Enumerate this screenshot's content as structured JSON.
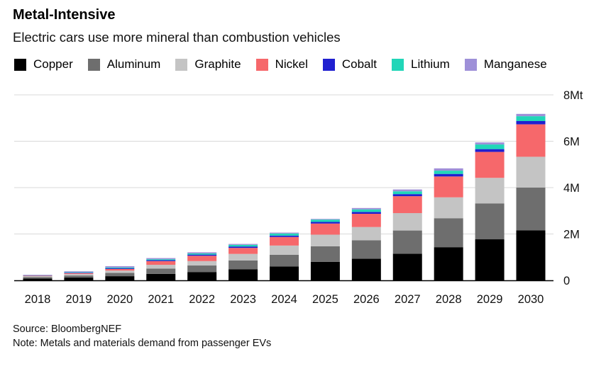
{
  "title": "Metal-Intensive",
  "subtitle": "Electric cars use more mineral than combustion vehicles",
  "source": "Source: BloombergNEF",
  "note": "Note: Metals and materials demand from passenger EVs",
  "chart_data": {
    "type": "bar",
    "stacked": true,
    "categories": [
      "2018",
      "2019",
      "2020",
      "2021",
      "2022",
      "2023",
      "2024",
      "2025",
      "2026",
      "2027",
      "2028",
      "2029",
      "2030"
    ],
    "series": [
      {
        "name": "Copper",
        "color": "#000000",
        "values": [
          0.08,
          0.12,
          0.18,
          0.28,
          0.36,
          0.48,
          0.6,
          0.8,
          0.93,
          1.15,
          1.43,
          1.77,
          2.16
        ]
      },
      {
        "name": "Aluminum",
        "color": "#6e6e6e",
        "values": [
          0.06,
          0.09,
          0.14,
          0.23,
          0.28,
          0.38,
          0.5,
          0.67,
          0.8,
          1.0,
          1.25,
          1.55,
          1.84
        ]
      },
      {
        "name": "Graphite",
        "color": "#c4c4c4",
        "values": [
          0.04,
          0.06,
          0.1,
          0.16,
          0.19,
          0.28,
          0.4,
          0.5,
          0.57,
          0.75,
          0.9,
          1.1,
          1.33
        ]
      },
      {
        "name": "Nickel",
        "color": "#f6686b",
        "values": [
          0.02,
          0.04,
          0.07,
          0.16,
          0.23,
          0.26,
          0.37,
          0.48,
          0.57,
          0.73,
          0.9,
          1.12,
          1.4
        ]
      },
      {
        "name": "Cobalt",
        "color": "#2020d0",
        "values": [
          0.01,
          0.02,
          0.03,
          0.04,
          0.05,
          0.06,
          0.06,
          0.07,
          0.08,
          0.09,
          0.11,
          0.12,
          0.14
        ]
      },
      {
        "name": "Lithium",
        "color": "#21d6b8",
        "values": [
          0.01,
          0.02,
          0.03,
          0.04,
          0.05,
          0.07,
          0.09,
          0.1,
          0.11,
          0.12,
          0.14,
          0.2,
          0.21
        ]
      },
      {
        "name": "Manganese",
        "color": "#9e90d8",
        "values": [
          0.02,
          0.04,
          0.06,
          0.05,
          0.05,
          0.04,
          0.04,
          0.03,
          0.06,
          0.08,
          0.1,
          0.09,
          0.1
        ]
      }
    ],
    "y_ticks": [
      "0",
      "2M",
      "4M",
      "6M",
      "8Mt"
    ],
    "y_tick_values": [
      0,
      2,
      4,
      6,
      8
    ],
    "ylim": [
      0,
      8
    ],
    "ylabel": "",
    "xlabel": "",
    "grid": true,
    "legend_position": "top"
  }
}
